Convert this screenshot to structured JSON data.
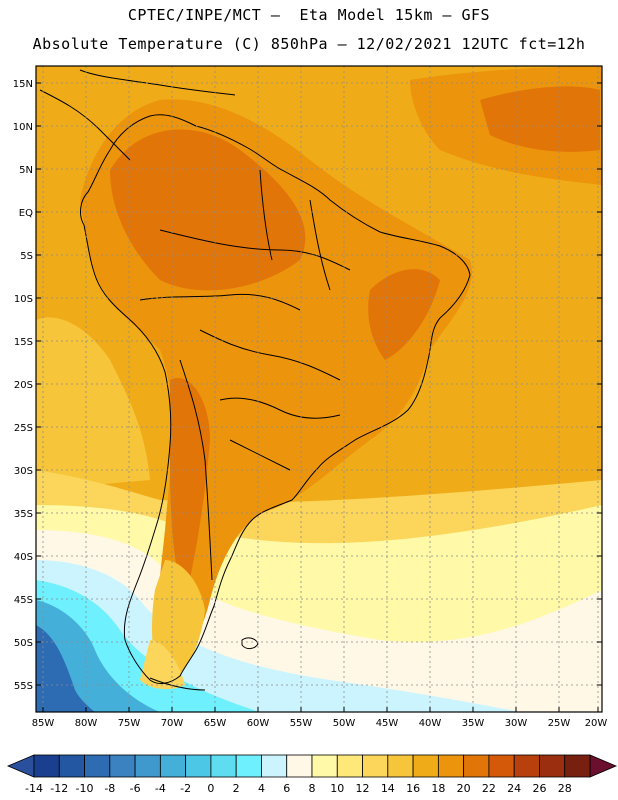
{
  "header": {
    "line1": "CPTEC/INPE/MCT –  Eta Model 15km – GFS",
    "line2": "Absolute Temperature (C) 850hPa – 12/02/2021 12UTC fct=12h"
  },
  "map": {
    "lat_labels": [
      "15N",
      "10N",
      "5N",
      "EQ",
      "5S",
      "10S",
      "15S",
      "20S",
      "25S",
      "30S",
      "35S",
      "40S",
      "45S",
      "50S",
      "55S"
    ],
    "lon_labels": [
      "85W",
      "80W",
      "75W",
      "70W",
      "65W",
      "60W",
      "55W",
      "50W",
      "45W",
      "40W",
      "35W",
      "30W",
      "25W",
      "20W"
    ]
  },
  "legend": {
    "labels": [
      "-14",
      "-12",
      "-10",
      "-8",
      "-6",
      "-4",
      "-2",
      "0",
      "2",
      "4",
      "6",
      "8",
      "10",
      "12",
      "14",
      "16",
      "18",
      "20",
      "22",
      "24",
      "26",
      "28"
    ],
    "colors": [
      "#1a3f8f",
      "#2357a1",
      "#2d6cb3",
      "#3a82c0",
      "#3f99cc",
      "#44b0d9",
      "#4cc8e6",
      "#5edcf0",
      "#6ff0ff",
      "#ccf4ff",
      "#fff8e6",
      "#fff9a8",
      "#ffe87a",
      "#fbd65a",
      "#f7c53a",
      "#f0ac18",
      "#ec940c",
      "#e27508",
      "#d45a0a",
      "#b8400c",
      "#9a2e0e",
      "#782010"
    ],
    "low_arrow_color": "#2a4f9c",
    "high_arrow_color": "#6b0f2e"
  }
}
